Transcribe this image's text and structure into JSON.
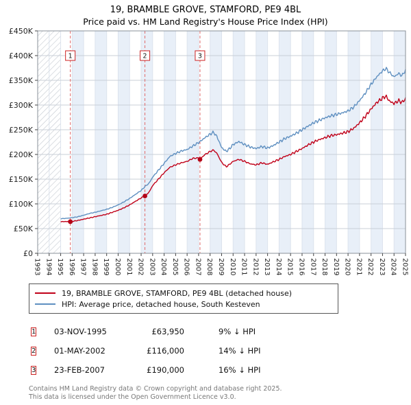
{
  "title": {
    "line1": "19, BRAMBLE GROVE, STAMFORD, PE9 4BL",
    "line2": "Price paid vs. HM Land Registry's House Price Index (HPI)"
  },
  "chart_data": {
    "type": "line",
    "title": "19, BRAMBLE GROVE, STAMFORD, PE9 4BL — Price paid vs. HPI",
    "xlim": [
      1993,
      2025
    ],
    "ylim": [
      0,
      450000
    ],
    "x_ticks": [
      1993,
      1994,
      1995,
      1996,
      1997,
      1998,
      1999,
      2000,
      2001,
      2002,
      2003,
      2004,
      2005,
      2006,
      2007,
      2008,
      2009,
      2010,
      2011,
      2012,
      2013,
      2014,
      2015,
      2016,
      2017,
      2018,
      2019,
      2020,
      2021,
      2022,
      2023,
      2024,
      2025
    ],
    "y_tick_values": [
      0,
      50000,
      100000,
      150000,
      200000,
      250000,
      300000,
      350000,
      400000,
      450000
    ],
    "y_tick_labels": [
      "£0",
      "£50K",
      "£100K",
      "£150K",
      "£200K",
      "£250K",
      "£300K",
      "£350K",
      "£400K",
      "£450K"
    ],
    "hatch_until": 1995.0,
    "colors": {
      "stripe": "#e8eff8",
      "grid_h": "#c9cfd7",
      "grid_v": "#dce3ed",
      "sale_dash": "#e06a6a",
      "sale_dot": "#b30016",
      "marker_box": "#cc2222",
      "axis": "#444444",
      "border": "#8a9099",
      "hatch_line": "#c4c9d0"
    },
    "series": [
      {
        "name": "19, BRAMBLE GROVE, STAMFORD, PE9 4BL (detached house)",
        "color": "#c00018",
        "points": [
          [
            1995.0,
            64000
          ],
          [
            1995.5,
            64300
          ],
          [
            1995.84,
            63950
          ],
          [
            1996.5,
            66500
          ],
          [
            1997.0,
            69000
          ],
          [
            1997.5,
            71500
          ],
          [
            1998.0,
            74000
          ],
          [
            1998.5,
            76500
          ],
          [
            1999.0,
            79000
          ],
          [
            1999.5,
            83000
          ],
          [
            2000.0,
            87000
          ],
          [
            2000.5,
            92000
          ],
          [
            2001.0,
            98000
          ],
          [
            2001.5,
            105000
          ],
          [
            2002.0,
            112000
          ],
          [
            2002.33,
            116000
          ],
          [
            2002.7,
            124000
          ],
          [
            2003.0,
            137000
          ],
          [
            2003.5,
            150000
          ],
          [
            2004.0,
            163000
          ],
          [
            2004.5,
            174000
          ],
          [
            2005.0,
            179000
          ],
          [
            2005.5,
            183000
          ],
          [
            2006.0,
            186000
          ],
          [
            2006.5,
            192000
          ],
          [
            2007.0,
            193000
          ],
          [
            2007.12,
            190000
          ],
          [
            2007.5,
            199000
          ],
          [
            2008.0,
            206000
          ],
          [
            2008.3,
            209000
          ],
          [
            2008.6,
            202000
          ],
          [
            2009.0,
            184000
          ],
          [
            2009.4,
            175000
          ],
          [
            2009.75,
            181000
          ],
          [
            2010.0,
            186000
          ],
          [
            2010.5,
            190000
          ],
          [
            2011.0,
            186000
          ],
          [
            2011.5,
            181000
          ],
          [
            2012.0,
            179000
          ],
          [
            2012.5,
            183000
          ],
          [
            2013.0,
            180000
          ],
          [
            2013.5,
            185000
          ],
          [
            2014.0,
            190000
          ],
          [
            2014.5,
            196000
          ],
          [
            2015.0,
            200000
          ],
          [
            2015.5,
            206000
          ],
          [
            2016.0,
            212000
          ],
          [
            2016.5,
            219000
          ],
          [
            2017.0,
            225000
          ],
          [
            2017.5,
            230000
          ],
          [
            2018.0,
            234000
          ],
          [
            2018.5,
            238000
          ],
          [
            2019.0,
            240000
          ],
          [
            2019.5,
            243000
          ],
          [
            2020.0,
            246000
          ],
          [
            2020.5,
            253000
          ],
          [
            2021.0,
            264000
          ],
          [
            2021.5,
            277000
          ],
          [
            2022.0,
            292000
          ],
          [
            2022.5,
            305000
          ],
          [
            2023.0,
            314000
          ],
          [
            2023.3,
            318000
          ],
          [
            2023.6,
            308000
          ],
          [
            2024.0,
            303000
          ],
          [
            2024.4,
            309000
          ],
          [
            2024.7,
            305000
          ],
          [
            2025.0,
            313000
          ]
        ]
      },
      {
        "name": "HPI: Average price, detached house, South Kesteven",
        "color": "#5e8fc0",
        "points": [
          [
            1995.0,
            70000
          ],
          [
            1995.5,
            70800
          ],
          [
            1996.0,
            72000
          ],
          [
            1996.5,
            74000
          ],
          [
            1997.0,
            77000
          ],
          [
            1997.5,
            80500
          ],
          [
            1998.0,
            83000
          ],
          [
            1998.5,
            86000
          ],
          [
            1999.0,
            89000
          ],
          [
            1999.5,
            93000
          ],
          [
            2000.0,
            98000
          ],
          [
            2000.5,
            104000
          ],
          [
            2001.0,
            111000
          ],
          [
            2001.5,
            119000
          ],
          [
            2002.0,
            127000
          ],
          [
            2002.33,
            135000
          ],
          [
            2002.7,
            142000
          ],
          [
            2003.0,
            154000
          ],
          [
            2003.5,
            168000
          ],
          [
            2004.0,
            182000
          ],
          [
            2004.5,
            196000
          ],
          [
            2005.0,
            202000
          ],
          [
            2005.5,
            207000
          ],
          [
            2006.0,
            210000
          ],
          [
            2006.5,
            217000
          ],
          [
            2007.0,
            224000
          ],
          [
            2007.12,
            226000
          ],
          [
            2007.5,
            233000
          ],
          [
            2008.0,
            241000
          ],
          [
            2008.3,
            245000
          ],
          [
            2008.6,
            236000
          ],
          [
            2009.0,
            214000
          ],
          [
            2009.4,
            206000
          ],
          [
            2009.75,
            213000
          ],
          [
            2010.0,
            220000
          ],
          [
            2010.5,
            226000
          ],
          [
            2011.0,
            220000
          ],
          [
            2011.5,
            215000
          ],
          [
            2012.0,
            212000
          ],
          [
            2012.5,
            216000
          ],
          [
            2013.0,
            213000
          ],
          [
            2013.5,
            218000
          ],
          [
            2014.0,
            225000
          ],
          [
            2014.5,
            232000
          ],
          [
            2015.0,
            237000
          ],
          [
            2015.5,
            243000
          ],
          [
            2016.0,
            250000
          ],
          [
            2016.5,
            257000
          ],
          [
            2017.0,
            264000
          ],
          [
            2017.5,
            269000
          ],
          [
            2018.0,
            274000
          ],
          [
            2018.5,
            278000
          ],
          [
            2019.0,
            281000
          ],
          [
            2019.5,
            284000
          ],
          [
            2020.0,
            288000
          ],
          [
            2020.5,
            296000
          ],
          [
            2021.0,
            309000
          ],
          [
            2021.5,
            324000
          ],
          [
            2022.0,
            342000
          ],
          [
            2022.5,
            357000
          ],
          [
            2023.0,
            369000
          ],
          [
            2023.3,
            374000
          ],
          [
            2023.6,
            366000
          ],
          [
            2024.0,
            357000
          ],
          [
            2024.4,
            364000
          ],
          [
            2024.7,
            359000
          ],
          [
            2025.0,
            371000
          ]
        ]
      }
    ],
    "markers": [
      {
        "label": "1",
        "x": 1995.84,
        "y": 63950
      },
      {
        "label": "2",
        "x": 2002.33,
        "y": 116000
      },
      {
        "label": "3",
        "x": 2007.12,
        "y": 190000
      }
    ]
  },
  "transactions": [
    {
      "n": "1",
      "date": "03-NOV-1995",
      "price": "£63,950",
      "hpi": "9% ↓ HPI"
    },
    {
      "n": "2",
      "date": "01-MAY-2002",
      "price": "£116,000",
      "hpi": "14% ↓ HPI"
    },
    {
      "n": "3",
      "date": "23-FEB-2007",
      "price": "£190,000",
      "hpi": "16% ↓ HPI"
    }
  ],
  "footer": {
    "line1": "Contains HM Land Registry data © Crown copyright and database right 2025.",
    "line2": "This data is licensed under the Open Government Licence v3.0."
  }
}
